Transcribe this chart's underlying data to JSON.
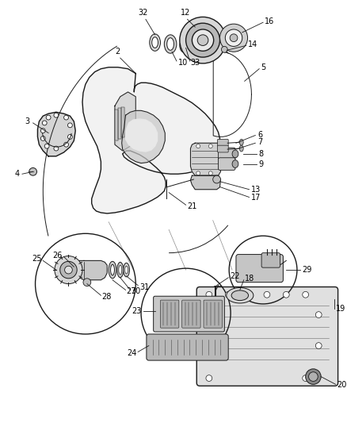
{
  "fig_width": 4.38,
  "fig_height": 5.33,
  "dpi": 100,
  "bg_color": "#ffffff",
  "line_color": "#1a1a1a",
  "label_color": "#000000",
  "lfs": 7.0,
  "lfs_small": 6.5,
  "lw_main": 1.0,
  "lw_med": 0.7,
  "lw_thin": 0.5,
  "lw_thick": 1.3,
  "gray_light": "#e0e0e0",
  "gray_mid": "#c0c0c0",
  "gray_dark": "#909090"
}
